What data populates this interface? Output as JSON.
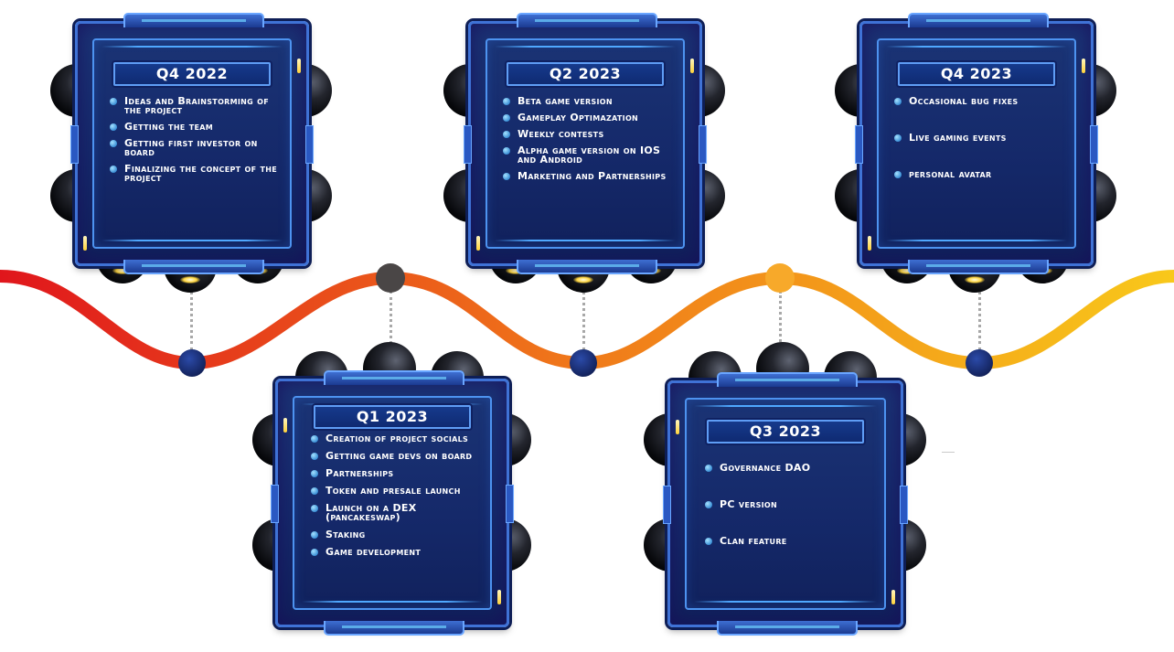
{
  "colors": {
    "wave_start": "#e0161c",
    "wave_mid": "#f07a1a",
    "wave_end": "#f8c81a",
    "node_fill": "#14245f",
    "top_node_1": "#4a4646",
    "top_node_2": "#f7a92a",
    "card_fill": "#15296a",
    "card_border": "#3f72d6",
    "text": "#ffffff"
  },
  "milestones": [
    {
      "period": "Q4 2022",
      "items": [
        "Ideas and Brainstorming of the project",
        "Getting the team",
        "Getting first investor on board",
        "Finalizing the concept of the project"
      ]
    },
    {
      "period": "Q1 2023",
      "items": [
        "Creation of project socials",
        "Getting game devs on board",
        "Partnerships",
        "Token and presale launch",
        "Launch on a DEX (pancakeswap)",
        "Staking",
        "Game development"
      ]
    },
    {
      "period": "Q2 2023",
      "items": [
        "Beta game version",
        "Gameplay Optimazation",
        "Weekly contests",
        "Alpha game version on IOS and Android",
        "Marketing and Partnerships"
      ]
    },
    {
      "period": "Q3 2023",
      "items": [
        "Governance DAO",
        "PC version",
        "Clan feature"
      ]
    },
    {
      "period": "Q4 2023",
      "items": [
        "Occasional bug fixes",
        "Live gaming events",
        "personal avatar"
      ]
    }
  ]
}
